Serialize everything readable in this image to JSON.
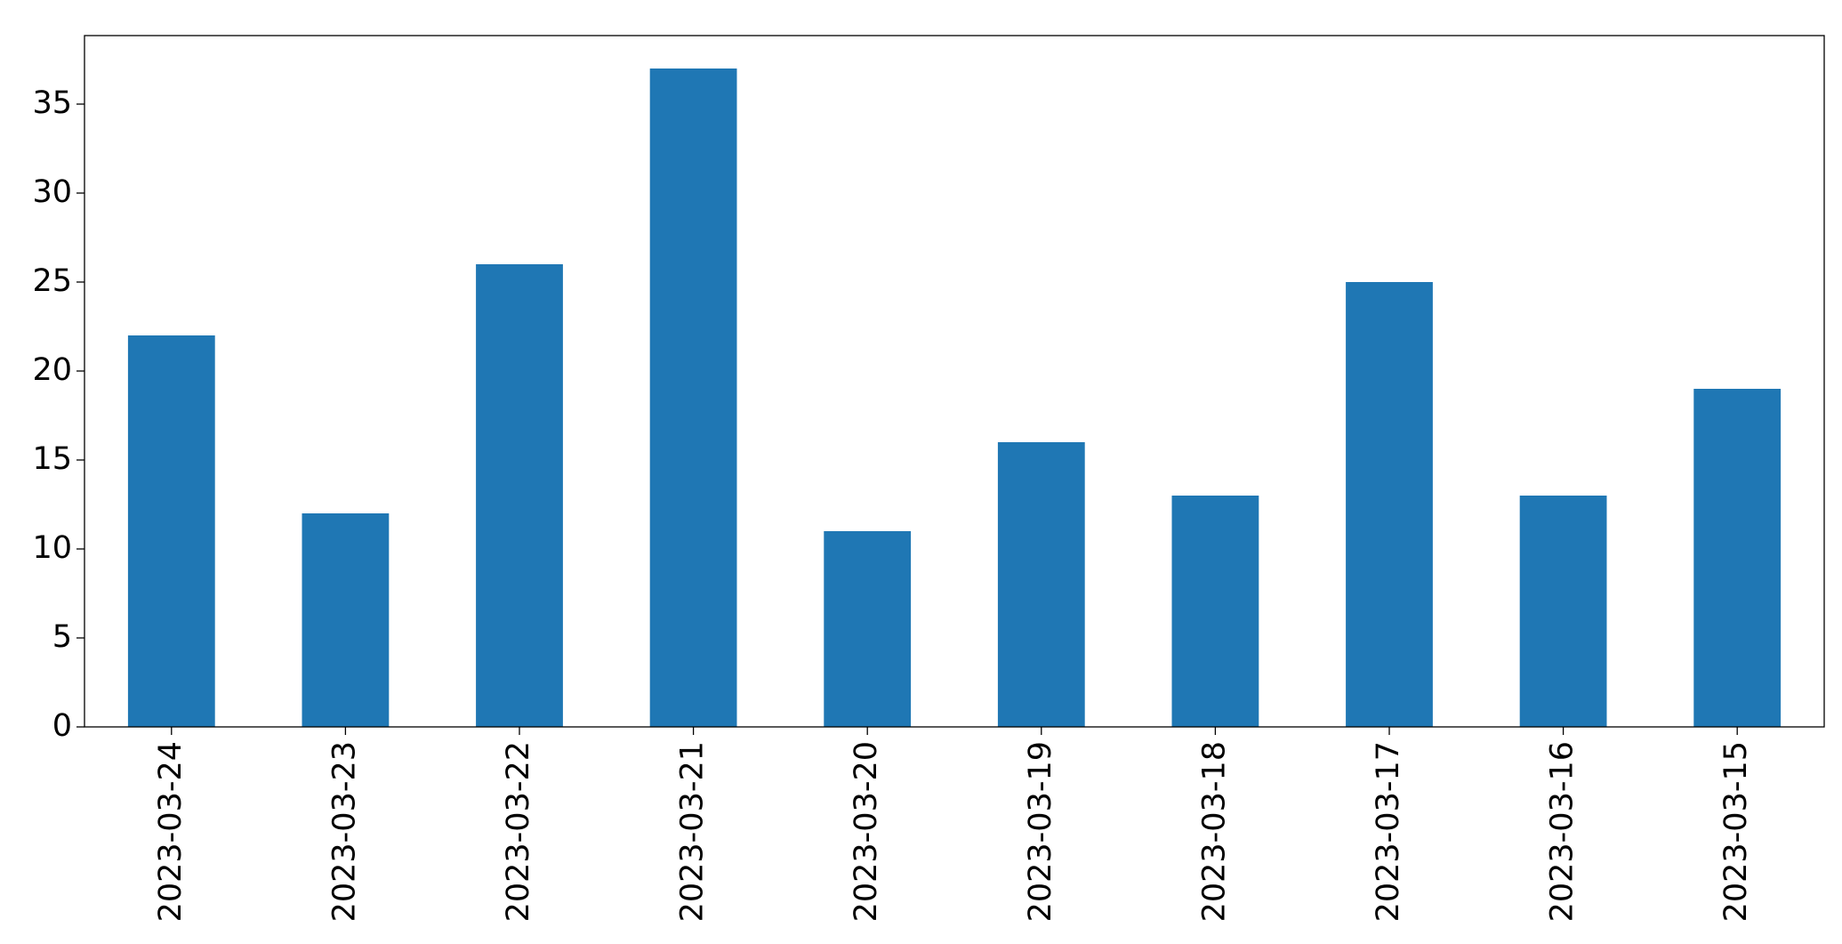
{
  "chart_data": {
    "type": "bar",
    "categories": [
      "2023-03-24",
      "2023-03-23",
      "2023-03-22",
      "2023-03-21",
      "2023-03-20",
      "2023-03-19",
      "2023-03-18",
      "2023-03-17",
      "2023-03-16",
      "2023-03-15"
    ],
    "values": [
      22,
      12,
      26,
      37,
      11,
      16,
      13,
      25,
      13,
      19
    ],
    "color": "#1f77b4",
    "ylim": [
      0,
      38.85
    ],
    "yticks": [
      0,
      5,
      10,
      15,
      20,
      25,
      30,
      35
    ],
    "grid": false
  }
}
